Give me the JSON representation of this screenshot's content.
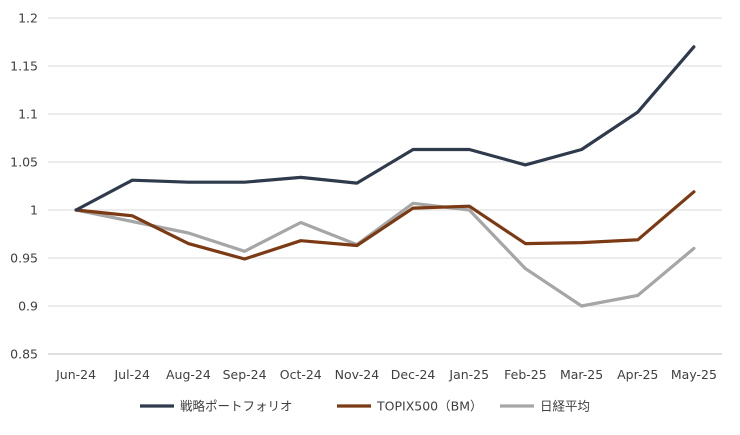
{
  "chart_data": {
    "type": "line",
    "categories": [
      "Jun-24",
      "Jul-24",
      "Aug-24",
      "Sep-24",
      "Oct-24",
      "Nov-24",
      "Dec-24",
      "Jan-25",
      "Feb-25",
      "Mar-25",
      "Apr-25",
      "May-25"
    ],
    "ylim": [
      0.85,
      1.2
    ],
    "yticks": [
      0.85,
      0.9,
      0.95,
      1,
      1.05,
      1.1,
      1.15,
      1.2
    ],
    "ytick_labels": [
      "0.85",
      "0.9",
      "0.95",
      "1",
      "1.05",
      "1.1",
      "1.15",
      "1.2"
    ],
    "grid": true,
    "legend_position": "bottom",
    "series": [
      {
        "name": "戦略ポートフォリオ",
        "color": "#2f3b4c",
        "values": [
          1.0,
          1.031,
          1.029,
          1.029,
          1.034,
          1.028,
          1.063,
          1.063,
          1.047,
          1.063,
          1.102,
          1.17
        ]
      },
      {
        "name": "TOPIX500（BM）",
        "color": "#7b3a13",
        "values": [
          1.0,
          0.994,
          0.965,
          0.949,
          0.968,
          0.963,
          1.002,
          1.004,
          0.965,
          0.966,
          0.969,
          1.019
        ]
      },
      {
        "name": "日経平均",
        "color": "#a6a6a6",
        "values": [
          1.0,
          0.988,
          0.976,
          0.957,
          0.987,
          0.964,
          1.007,
          1.0,
          0.939,
          0.9,
          0.911,
          0.96
        ]
      }
    ]
  }
}
